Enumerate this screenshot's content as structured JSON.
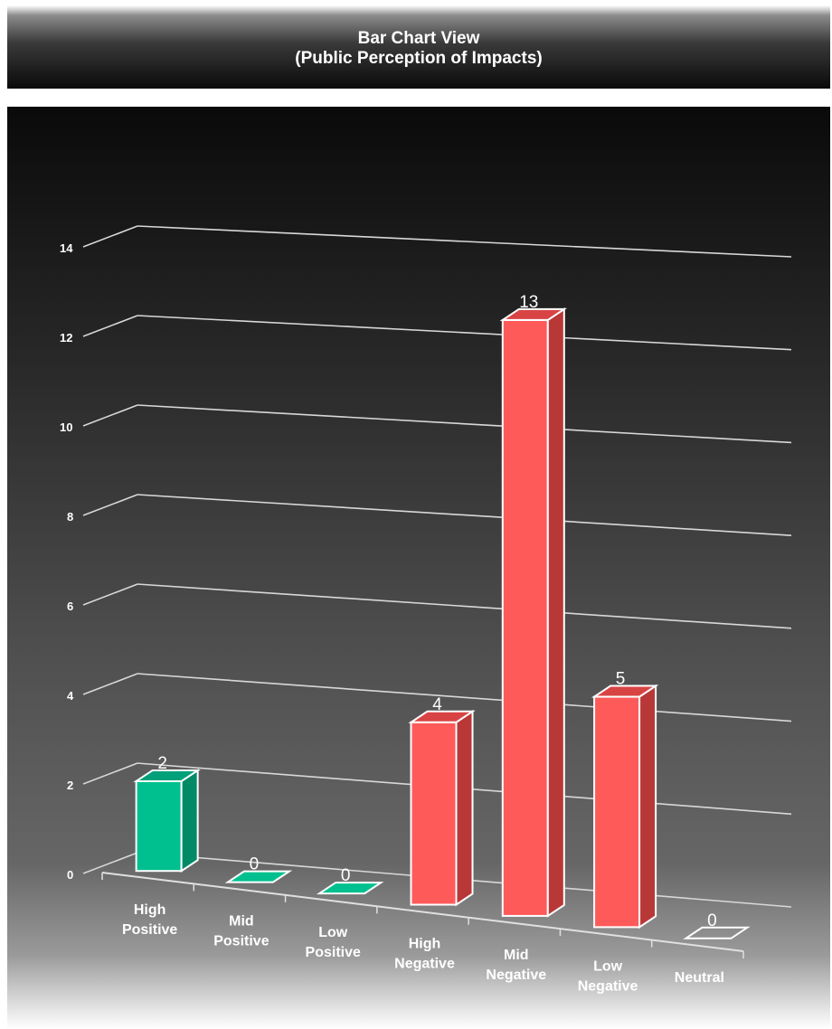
{
  "header": {
    "title_line1": "Bar Chart View",
    "title_line2": "(Public Perception of Impacts)"
  },
  "chart_data": {
    "type": "bar",
    "title": "Bar Chart View (Public Perception of Impacts)",
    "categories": [
      [
        "High",
        "Positive"
      ],
      [
        "Mid",
        "Positive"
      ],
      [
        "Low",
        "Positive"
      ],
      [
        "High",
        "Negative"
      ],
      [
        "Mid",
        "Negative"
      ],
      [
        "Low",
        "Negative"
      ],
      [
        "Neutral"
      ]
    ],
    "values": [
      2,
      0,
      0,
      4,
      13,
      5,
      0
    ],
    "data_labels": [
      "2",
      "0",
      "0",
      "4",
      "13",
      "5",
      "0"
    ],
    "colors": [
      "#00c08f",
      "#00c08f",
      "#00c08f",
      "#ff5a5a",
      "#ff5a5a",
      "#ff5a5a",
      "#ffffff"
    ],
    "y_ticks": [
      0,
      2,
      4,
      6,
      8,
      10,
      12,
      14
    ],
    "ylim": [
      0,
      14
    ],
    "grid": true,
    "legend": "none",
    "style": "3d-column"
  }
}
